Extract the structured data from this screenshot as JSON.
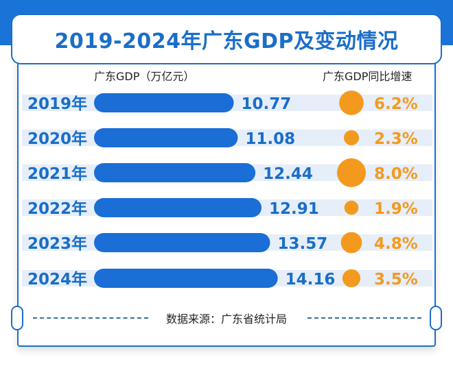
{
  "title": "2019-2024年广东GDP及变动情况",
  "chart_data": {
    "type": "bar",
    "categories": [
      "2019年",
      "2020年",
      "2021年",
      "2022年",
      "2023年",
      "2024年"
    ],
    "series": [
      {
        "name": "广东GDP（万亿元）",
        "values": [
          10.77,
          11.08,
          12.44,
          12.91,
          13.57,
          14.16
        ],
        "labels": [
          "10.77",
          "11.08",
          "12.44",
          "12.91",
          "13.57",
          "14.16"
        ],
        "color": "#1a6ed6"
      },
      {
        "name": "广东GDP同比增速",
        "values": [
          6.2,
          2.3,
          8.0,
          1.9,
          4.8,
          3.5
        ],
        "labels": [
          "6.2%",
          "2.3%",
          "8.0%",
          "1.9%",
          "4.8%",
          "3.5%"
        ],
        "color": "#f39a1e"
      }
    ],
    "legend_left": "广东GDP（万亿元）",
    "legend_right": "广东GDP同比增速"
  },
  "source": "数据来源：广东省统计局",
  "colors": {
    "brand": "#1a6ec8",
    "accent": "#f39a1e",
    "stripe": "#e6eef9"
  }
}
